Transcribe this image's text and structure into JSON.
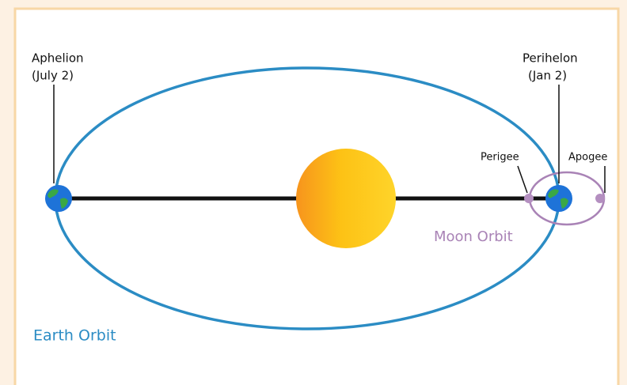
{
  "labels": {
    "aphelion": "Aphelion",
    "aphelion_date": "(July 2)",
    "perihelion": "Perihelon",
    "perihelion_date": "(Jan 2)",
    "perigee": "Perigee",
    "apogee": "Apogee",
    "moon_orbit": "Moon Orbit",
    "earth_orbit": "Earth Orbit"
  }
}
